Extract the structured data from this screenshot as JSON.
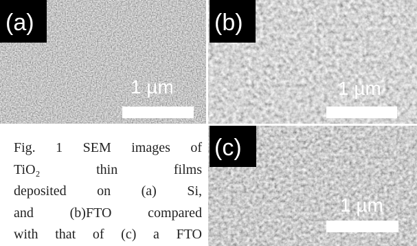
{
  "panels": [
    {
      "label": "(a)",
      "scale": "1 µm"
    },
    {
      "label": "(b)",
      "scale": "1 µm"
    },
    {
      "label": "(c)",
      "scale": "1 µm"
    }
  ],
  "caption": {
    "lines": [
      "Fig. 1 SEM images of",
      "TiO₂ thin films",
      "deposited on (a) Si,",
      "and (b)FTO compared",
      "with that of (c) a FTO"
    ]
  }
}
